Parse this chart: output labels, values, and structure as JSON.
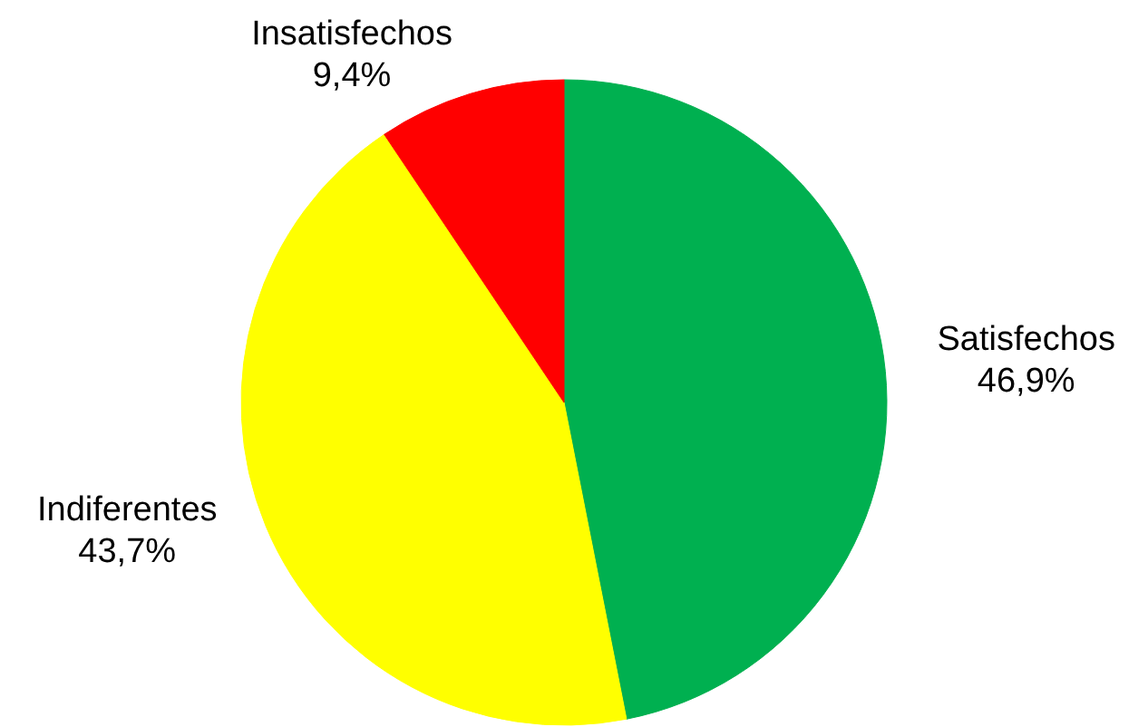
{
  "chart_data": {
    "type": "pie",
    "categories": [
      "Satisfechos",
      "Indiferentes",
      "Insatisfechos"
    ],
    "values": [
      46.9,
      43.7,
      9.4
    ],
    "colors": [
      "#00b050",
      "#ffff00",
      "#ff0000"
    ],
    "value_labels": [
      "46,9%",
      "43,7%",
      "9,4%"
    ]
  }
}
